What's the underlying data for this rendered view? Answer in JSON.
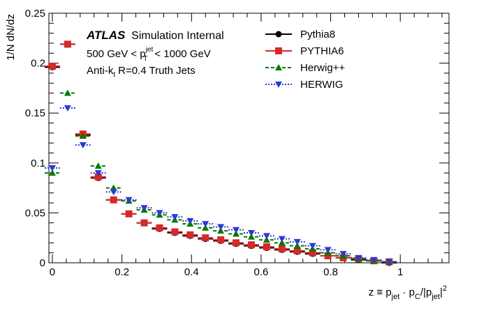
{
  "chart_data": {
    "type": "scatter",
    "title": "",
    "ylabel": "1/N dN/dz",
    "xlabel": {
      "main": "z ≡ p",
      "sub1": "jet",
      "mid": " · p",
      "sub2": "C",
      "mid2": "/|p",
      "sub3": "jet",
      "end": "|",
      "sup": "2"
    },
    "xlim": [
      -0.01,
      1.14
    ],
    "ylim": [
      0,
      0.25
    ],
    "x_ticks": [
      0,
      0.2,
      0.4,
      0.6,
      0.8,
      1
    ],
    "x_tick_labels": [
      "0",
      "0.2",
      "0.4",
      "0.6",
      "0.8",
      "1"
    ],
    "y_ticks": [
      0,
      0.05,
      0.1,
      0.15,
      0.2,
      0.25
    ],
    "y_tick_labels": [
      "0",
      "0.05",
      "0.1",
      "0.15",
      "0.2",
      "0.25"
    ],
    "annotations": {
      "atlas": "ATLAS",
      "internal": "Simulation Internal",
      "pt_pre": "500 GeV < p",
      "pt_sup": "jet",
      "pt_sub": "T",
      "pt_post": "< 1000 GeV",
      "jets_pre": "Anti-k",
      "jets_sub": "t",
      "jets_post": "R=0.4 Truth Jets"
    },
    "legend_position": "top-right",
    "bin_width": 0.044,
    "x": [
      0.0,
      0.044,
      0.088,
      0.132,
      0.176,
      0.22,
      0.264,
      0.308,
      0.352,
      0.396,
      0.44,
      0.484,
      0.528,
      0.572,
      0.616,
      0.66,
      0.704,
      0.748,
      0.792,
      0.836,
      0.88,
      0.924,
      0.968
    ],
    "series": [
      {
        "name": "Pythia8",
        "color": "#000000",
        "marker": "circle",
        "dash": "",
        "values": [
          0.196,
          0.219,
          0.128,
          0.085,
          0.063,
          0.049,
          0.04,
          0.034,
          0.03,
          0.027,
          0.024,
          0.022,
          0.019,
          0.017,
          0.015,
          0.013,
          0.011,
          0.009,
          0.007,
          0.005,
          0.003,
          0.002,
          0.0
        ]
      },
      {
        "name": "PYTHIA6",
        "color": "#d42a2a",
        "marker": "square",
        "dash": "",
        "values": [
          0.197,
          0.219,
          0.129,
          0.086,
          0.063,
          0.049,
          0.04,
          0.035,
          0.031,
          0.028,
          0.025,
          0.023,
          0.02,
          0.018,
          0.016,
          0.014,
          0.012,
          0.01,
          0.007,
          0.005,
          0.004,
          0.002,
          0.001
        ]
      },
      {
        "name": "Herwig++",
        "color": "#007a00",
        "marker": "triangle-up",
        "dash": "5,3",
        "values": [
          0.09,
          0.17,
          0.127,
          0.097,
          0.075,
          0.062,
          0.053,
          0.048,
          0.043,
          0.039,
          0.035,
          0.032,
          0.029,
          0.026,
          0.023,
          0.02,
          0.017,
          0.014,
          0.01,
          0.007,
          0.004,
          0.002,
          0.001
        ]
      },
      {
        "name": "HERWIG",
        "color": "#2a3bd4",
        "marker": "triangle-down",
        "dash": "2,2",
        "values": [
          0.095,
          0.155,
          0.118,
          0.09,
          0.071,
          0.063,
          0.055,
          0.05,
          0.046,
          0.042,
          0.039,
          0.036,
          0.033,
          0.03,
          0.027,
          0.024,
          0.021,
          0.017,
          0.013,
          0.009,
          0.005,
          0.003,
          0.001
        ]
      }
    ]
  }
}
